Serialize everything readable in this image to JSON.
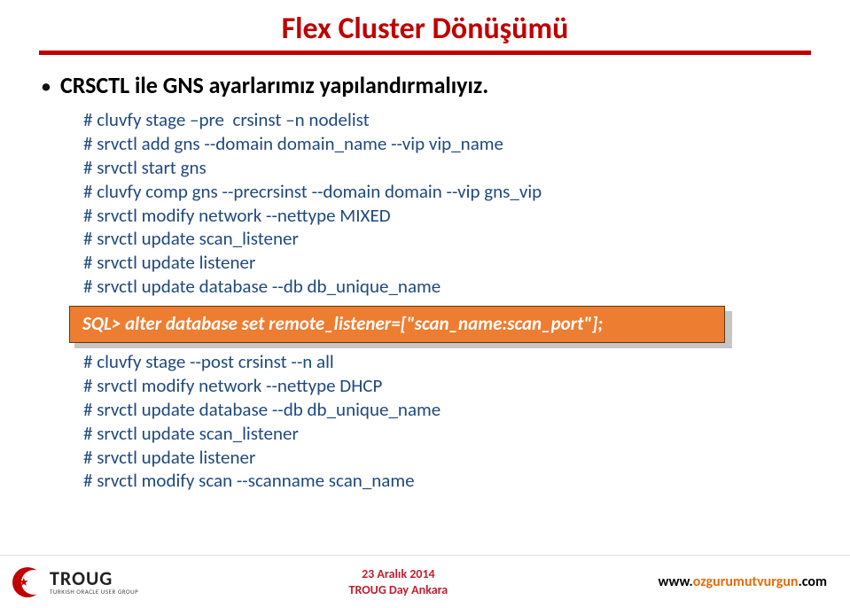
{
  "title_parts": {
    "a": "Flex",
    "b": "Cluster",
    "c": "Dönüşümü"
  },
  "title_colors": {
    "a": "#c00000",
    "b": "#c00000",
    "c": "#c00000"
  },
  "bullet": "CRSCTL  ile  GNS ayarlarımız yapılandırmalıyız.",
  "block1": [
    "# cluvfy stage –pre  crsinst –n nodelist",
    "# srvctl add gns --domain domain_name --vip vip_name",
    "# srvctl start gns",
    "# cluvfy comp gns --precrsinst --domain domain --vip gns_vip",
    "# srvctl modify network --nettype MIXED",
    "# srvctl update scan_listener",
    "# srvctl update listener",
    "# srvctl update database --db db_unique_name"
  ],
  "callout": "SQL> alter database set remote_listener=[\"scan_name:scan_port\"];",
  "block2": [
    "# cluvfy stage --post crsinst --n all",
    "# srvctl modify network --nettype DHCP",
    "# srvctl update database --db db_unique_name",
    "# srvctl update scan_listener",
    "# srvctl update listener",
    "# srvctl modify scan --scanname scan_name"
  ],
  "footer": {
    "brand": "TROUG",
    "brand_sub": "TURKISH ORACLE USER GROUP",
    "mid_line1": "23 Aralık  2014",
    "mid_line2": "TROUG Day  Ankara",
    "right_pre": "www.",
    "right_mid": "ozgurumutvurgun",
    "right_post": ".com"
  },
  "colors": {
    "code": "#1f497d",
    "red": "#c00000",
    "callout_bg": "#ed7d31",
    "url_mid": "#e46c0a"
  }
}
